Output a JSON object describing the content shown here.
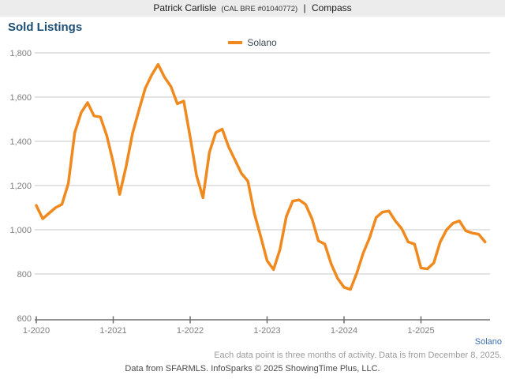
{
  "header": {
    "agent_name": "Patrick Carlisle",
    "license": "(CAL BRE #01040772)",
    "separator": "|",
    "brokerage": "Compass"
  },
  "title": "Sold Listings",
  "legend": {
    "label": "Solano",
    "color": "#f0891e"
  },
  "region_label": "Solano",
  "footnotes": {
    "activity_note": "Each data point is three months of activity. Data is from December 8, 2025.",
    "source_note": "Data from SFARMLS. InfoSparks © 2025 ShowingTime Plus, LLC."
  },
  "colors": {
    "series_orange": "#f0891e",
    "title_navy": "#1d4f76",
    "link_blue": "#3e6fb4",
    "gridline_gray": "#c9c9c9",
    "axis_gray": "#6e6e6e",
    "tick_label_gray": "#7e7e7e"
  },
  "chart_data": {
    "type": "line",
    "title": "Sold Listings",
    "xlabel": "",
    "ylabel": "",
    "ylim": [
      600,
      1800
    ],
    "grid": "horizontal",
    "legend_position": "top-center",
    "y_ticks": [
      600,
      800,
      1000,
      1200,
      1400,
      1600,
      1800
    ],
    "y_tick_labels": [
      "600",
      "800",
      "1,000",
      "1,200",
      "1,400",
      "1,600",
      "1,800"
    ],
    "x_tick_indices": [
      0,
      12,
      24,
      36,
      48,
      60
    ],
    "x_tick_labels": [
      "1-2020",
      "1-2021",
      "1-2022",
      "1-2023",
      "1-2024",
      "1-2025"
    ],
    "months": [
      "2020-01",
      "2020-02",
      "2020-03",
      "2020-04",
      "2020-05",
      "2020-06",
      "2020-07",
      "2020-08",
      "2020-09",
      "2020-10",
      "2020-11",
      "2020-12",
      "2021-01",
      "2021-02",
      "2021-03",
      "2021-04",
      "2021-05",
      "2021-06",
      "2021-07",
      "2021-08",
      "2021-09",
      "2021-10",
      "2021-11",
      "2021-12",
      "2022-01",
      "2022-02",
      "2022-03",
      "2022-04",
      "2022-05",
      "2022-06",
      "2022-07",
      "2022-08",
      "2022-09",
      "2022-10",
      "2022-11",
      "2022-12",
      "2023-01",
      "2023-02",
      "2023-03",
      "2023-04",
      "2023-05",
      "2023-06",
      "2023-07",
      "2023-08",
      "2023-09",
      "2023-10",
      "2023-11",
      "2023-12",
      "2024-01",
      "2024-02",
      "2024-03",
      "2024-04",
      "2024-05",
      "2024-06",
      "2024-07",
      "2024-08",
      "2024-09",
      "2024-10",
      "2024-11",
      "2024-12",
      "2025-01",
      "2025-02",
      "2025-03",
      "2025-04",
      "2025-05",
      "2025-06",
      "2025-07",
      "2025-08",
      "2025-09",
      "2025-10",
      "2025-11"
    ],
    "series": [
      {
        "name": "Solano",
        "color": "#f0891e",
        "values": [
          1110,
          1050,
          1075,
          1100,
          1115,
          1210,
          1440,
          1530,
          1575,
          1515,
          1510,
          1425,
          1305,
          1160,
          1285,
          1435,
          1540,
          1640,
          1700,
          1748,
          1690,
          1648,
          1570,
          1582,
          1420,
          1245,
          1145,
          1350,
          1440,
          1455,
          1375,
          1315,
          1255,
          1220,
          1075,
          970,
          860,
          820,
          910,
          1060,
          1130,
          1135,
          1115,
          1050,
          950,
          935,
          845,
          780,
          740,
          730,
          805,
          895,
          965,
          1055,
          1080,
          1085,
          1040,
          1005,
          945,
          935,
          827,
          823,
          850,
          945,
          1000,
          1030,
          1040,
          995,
          985,
          980,
          945
        ]
      }
    ]
  }
}
